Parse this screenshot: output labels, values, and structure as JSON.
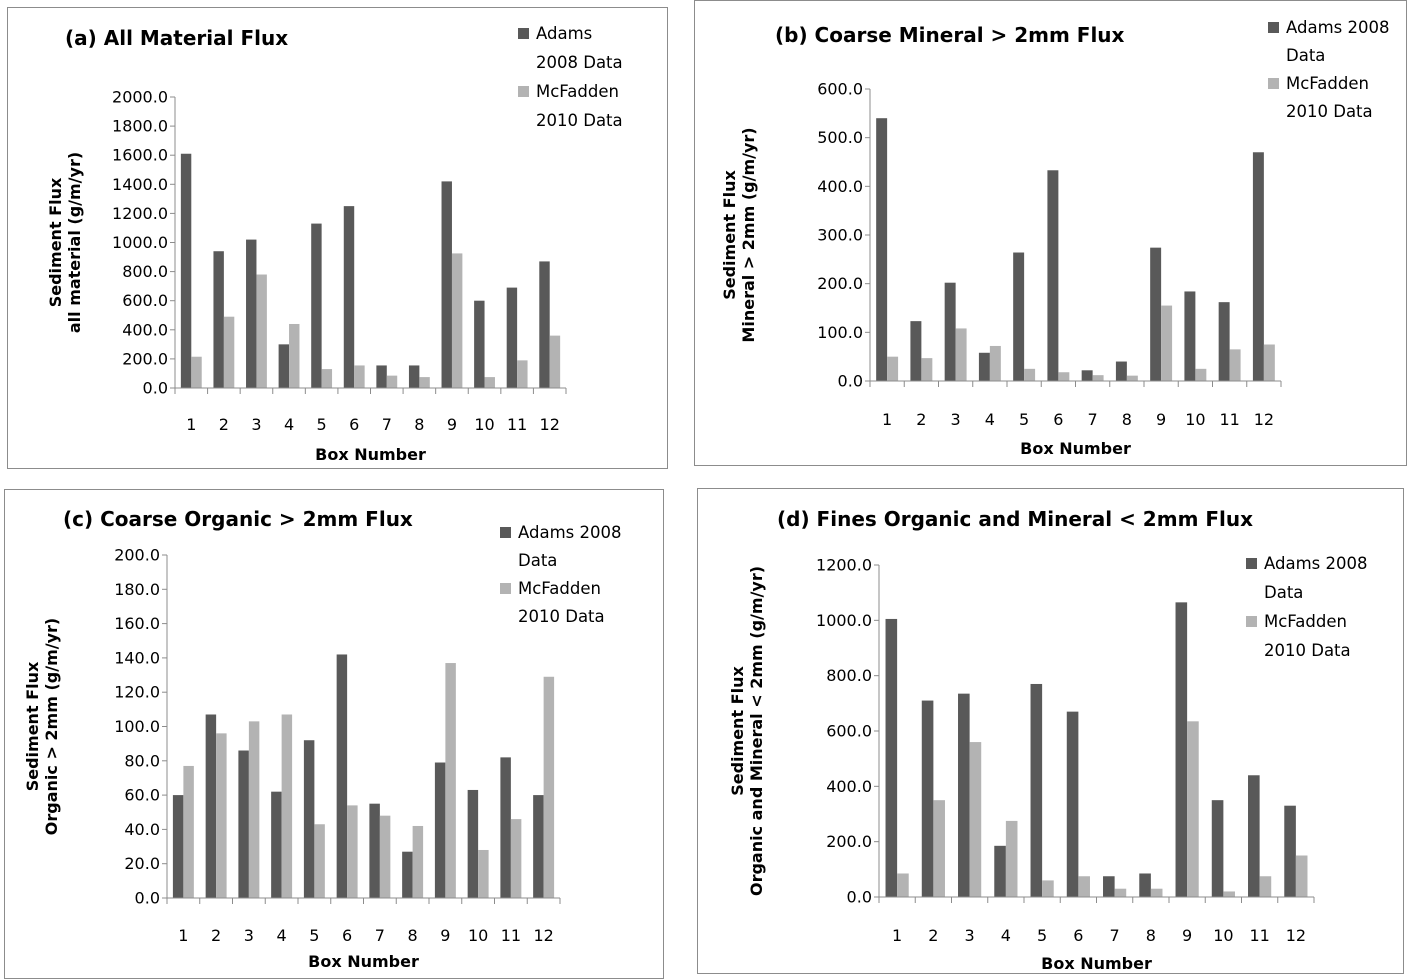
{
  "colors": {
    "adams": "#595959",
    "mcfadden": "#b3b3b3",
    "axis": "#8c8c8c"
  },
  "chart_data": [
    {
      "type": "bar",
      "title": "(a) All Material Flux",
      "xlabel": "Box Number",
      "ylabel_lines": [
        "Sediment Flux",
        "all material (g/m/yr)"
      ],
      "categories": [
        "1",
        "2",
        "3",
        "4",
        "5",
        "6",
        "7",
        "8",
        "9",
        "10",
        "11",
        "12"
      ],
      "ylim": [
        0,
        2000
      ],
      "yticks": [
        "0.0",
        "200.0",
        "400.0",
        "600.0",
        "800.0",
        "1000.0",
        "1200.0",
        "1400.0",
        "1600.0",
        "1800.0",
        "2000.0"
      ],
      "series": [
        {
          "name_lines": [
            "Adams",
            "2008 Data"
          ],
          "values": [
            1610,
            940,
            1020,
            300,
            1130,
            1250,
            155,
            155,
            1420,
            600,
            690,
            870
          ]
        },
        {
          "name_lines": [
            "McFadden",
            "2010 Data"
          ],
          "values": [
            215,
            490,
            780,
            440,
            130,
            155,
            85,
            75,
            925,
            75,
            190,
            360
          ]
        }
      ]
    },
    {
      "type": "bar",
      "title": "(b) Coarse Mineral > 2mm Flux",
      "xlabel": "Box Number",
      "ylabel_lines": [
        "Sediment Flux",
        "Mineral > 2mm (g/m/yr)"
      ],
      "categories": [
        "1",
        "2",
        "3",
        "4",
        "5",
        "6",
        "7",
        "8",
        "9",
        "10",
        "11",
        "12"
      ],
      "ylim": [
        0,
        600
      ],
      "yticks": [
        "0.0",
        "100.0",
        "200.0",
        "300.0",
        "400.0",
        "500.0",
        "600.0"
      ],
      "series": [
        {
          "name_lines": [
            "Adams 2008",
            "Data"
          ],
          "values": [
            540,
            123,
            202,
            58,
            264,
            433,
            22,
            40,
            274,
            184,
            162,
            470
          ]
        },
        {
          "name_lines": [
            "McFadden",
            "2010 Data"
          ],
          "values": [
            50,
            47,
            108,
            72,
            25,
            18,
            12,
            11,
            155,
            25,
            65,
            75
          ]
        }
      ]
    },
    {
      "type": "bar",
      "title": "(c) Coarse Organic > 2mm Flux",
      "xlabel": "Box Number",
      "ylabel_lines": [
        "Sediment Flux",
        "Organic > 2mm (g/m/yr)"
      ],
      "categories": [
        "1",
        "2",
        "3",
        "4",
        "5",
        "6",
        "7",
        "8",
        "9",
        "10",
        "11",
        "12"
      ],
      "ylim": [
        0,
        200
      ],
      "yticks": [
        "0.0",
        "20.0",
        "40.0",
        "60.0",
        "80.0",
        "100.0",
        "120.0",
        "140.0",
        "160.0",
        "180.0",
        "200.0"
      ],
      "series": [
        {
          "name_lines": [
            "Adams 2008",
            "Data"
          ],
          "values": [
            60,
            107,
            86,
            62,
            92,
            142,
            55,
            27,
            79,
            63,
            82,
            60
          ]
        },
        {
          "name_lines": [
            "McFadden",
            "2010 Data"
          ],
          "values": [
            77,
            96,
            103,
            107,
            43,
            54,
            48,
            42,
            137,
            28,
            46,
            129
          ]
        }
      ]
    },
    {
      "type": "bar",
      "title": "(d) Fines Organic and Mineral < 2mm Flux",
      "xlabel": "Box Number",
      "ylabel_lines": [
        "Sediment Flux",
        "Organic and Mineral < 2mm (g/m/yr)"
      ],
      "categories": [
        "1",
        "2",
        "3",
        "4",
        "5",
        "6",
        "7",
        "8",
        "9",
        "10",
        "11",
        "12"
      ],
      "ylim": [
        0,
        1200
      ],
      "yticks": [
        "0.0",
        "200.0",
        "400.0",
        "600.0",
        "800.0",
        "1000.0",
        "1200.0"
      ],
      "series": [
        {
          "name_lines": [
            "Adams 2008",
            "Data"
          ],
          "values": [
            1005,
            710,
            735,
            185,
            770,
            670,
            75,
            85,
            1065,
            350,
            440,
            330
          ]
        },
        {
          "name_lines": [
            "McFadden",
            "2010 Data"
          ],
          "values": [
            85,
            350,
            560,
            275,
            60,
            75,
            30,
            30,
            635,
            20,
            75,
            150
          ]
        }
      ]
    }
  ]
}
